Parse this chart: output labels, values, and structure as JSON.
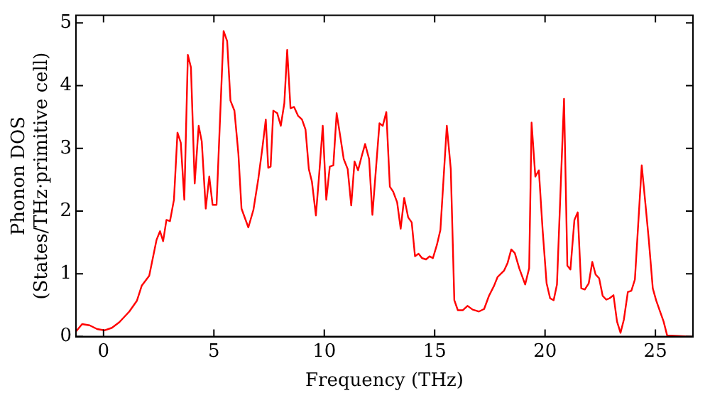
{
  "chart_data": {
    "type": "line",
    "xlabel": "Frequency (THz)",
    "ylabel": "Phonon DOS\n(States/THz·primitive cell)",
    "xlim": [
      -1.25,
      26.7
    ],
    "ylim": [
      0,
      5.12
    ],
    "xticks": [
      0,
      5,
      10,
      15,
      20,
      25
    ],
    "yticks": [
      0,
      1,
      2,
      3,
      4,
      5
    ],
    "grid": false,
    "legend": false,
    "marker": "none",
    "line_style": "solid",
    "series": [
      {
        "color": "#ff0000",
        "x": [
          -1.25,
          -0.97,
          -0.63,
          -0.29,
          0.04,
          0.38,
          0.72,
          1.17,
          1.51,
          1.73,
          2.07,
          2.4,
          2.56,
          2.7,
          2.85,
          3.01,
          3.19,
          3.35,
          3.5,
          3.66,
          3.82,
          3.96,
          4.13,
          4.31,
          4.45,
          4.63,
          4.79,
          4.94,
          5.12,
          5.44,
          5.6,
          5.75,
          5.93,
          6.11,
          6.25,
          6.56,
          6.79,
          7.01,
          7.19,
          7.35,
          7.46,
          7.57,
          7.69,
          7.87,
          8.03,
          8.19,
          8.32,
          8.47,
          8.63,
          8.81,
          8.99,
          9.15,
          9.3,
          9.44,
          9.62,
          9.77,
          9.93,
          10.09,
          10.25,
          10.41,
          10.56,
          10.72,
          10.88,
          11.06,
          11.22,
          11.37,
          11.53,
          11.69,
          11.85,
          12.03,
          12.18,
          12.34,
          12.5,
          12.65,
          12.81,
          12.97,
          13.12,
          13.3,
          13.46,
          13.62,
          13.8,
          13.96,
          14.11,
          14.27,
          14.43,
          14.61,
          14.77,
          14.92,
          15.1,
          15.26,
          15.55,
          15.73,
          15.89,
          16.05,
          16.27,
          16.49,
          16.72,
          17.01,
          17.24,
          17.46,
          17.69,
          17.85,
          18.14,
          18.3,
          18.47,
          18.63,
          18.83,
          19.1,
          19.28,
          19.39,
          19.56,
          19.72,
          19.89,
          20.07,
          20.23,
          20.39,
          20.54,
          20.86,
          21.01,
          21.15,
          21.33,
          21.48,
          21.64,
          21.8,
          21.98,
          22.14,
          22.29,
          22.45,
          22.61,
          22.77,
          22.92,
          23.1,
          23.26,
          23.42,
          23.57,
          23.75,
          23.91,
          24.07,
          24.38,
          24.54,
          24.7,
          24.88,
          25.03,
          25.21,
          25.37,
          25.53,
          26.7
        ],
        "values": [
          0.08,
          0.2,
          0.18,
          0.12,
          0.1,
          0.14,
          0.23,
          0.4,
          0.57,
          0.81,
          0.97,
          1.54,
          1.68,
          1.52,
          1.86,
          1.84,
          2.18,
          3.25,
          3.09,
          2.18,
          4.49,
          4.29,
          2.44,
          3.36,
          3.11,
          2.04,
          2.55,
          2.1,
          2.1,
          4.87,
          4.71,
          3.76,
          3.6,
          2.91,
          2.04,
          1.74,
          2.02,
          2.51,
          2.99,
          3.46,
          2.69,
          2.71,
          3.6,
          3.56,
          3.36,
          3.72,
          4.57,
          3.64,
          3.66,
          3.52,
          3.46,
          3.3,
          2.67,
          2.47,
          1.93,
          2.59,
          3.36,
          2.18,
          2.71,
          2.73,
          3.56,
          3.2,
          2.83,
          2.67,
          2.09,
          2.79,
          2.65,
          2.87,
          3.07,
          2.83,
          1.94,
          2.67,
          3.4,
          3.36,
          3.58,
          2.39,
          2.31,
          2.14,
          1.72,
          2.21,
          1.9,
          1.82,
          1.28,
          1.32,
          1.25,
          1.23,
          1.28,
          1.25,
          1.46,
          1.7,
          3.36,
          2.67,
          0.58,
          0.42,
          0.42,
          0.49,
          0.43,
          0.4,
          0.44,
          0.65,
          0.81,
          0.95,
          1.05,
          1.17,
          1.39,
          1.33,
          1.09,
          0.83,
          1.09,
          3.41,
          2.55,
          2.65,
          1.7,
          0.85,
          0.61,
          0.58,
          0.83,
          3.79,
          1.13,
          1.07,
          1.86,
          1.98,
          0.77,
          0.75,
          0.85,
          1.19,
          0.99,
          0.93,
          0.65,
          0.59,
          0.61,
          0.66,
          0.24,
          0.06,
          0.27,
          0.71,
          0.73,
          0.91,
          2.73,
          2.14,
          1.54,
          0.77,
          0.58,
          0.4,
          0.24,
          0.02,
          0
        ]
      }
    ]
  }
}
